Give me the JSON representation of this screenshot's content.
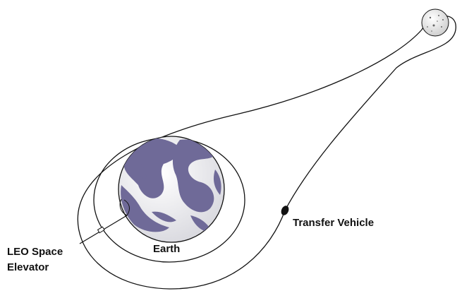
{
  "labels": {
    "elevator": [
      "LEO Space",
      "Elevator"
    ],
    "earth": "Earth",
    "vehicle": "Transfer Vehicle"
  }
}
